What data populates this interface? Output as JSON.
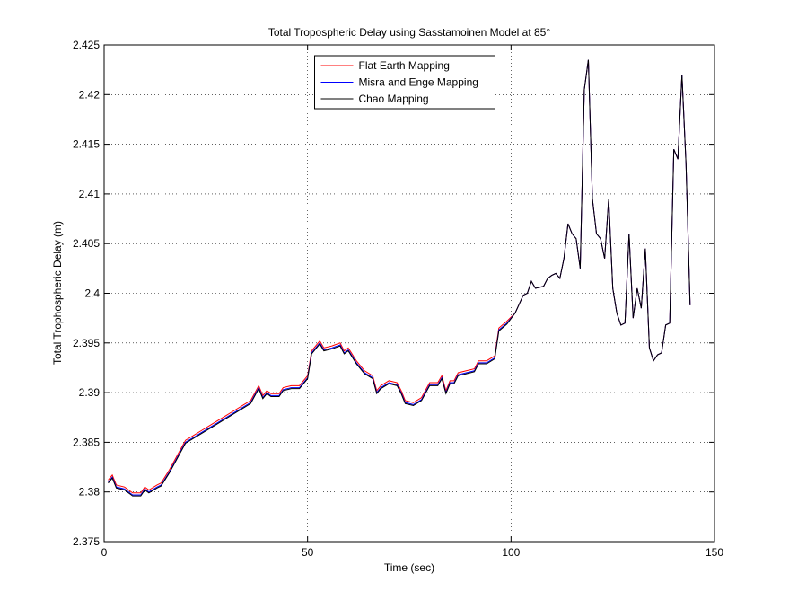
{
  "chart_data": {
    "type": "line",
    "title": "Total Tropospheric Delay using Sasstamoinen Model at 85°",
    "x_label": "Time (sec)",
    "y_label": "Total Trophospheric Delay (m)",
    "x": [
      1,
      2,
      3,
      5,
      7,
      9,
      10,
      11,
      13,
      14,
      16,
      18,
      20,
      22,
      24,
      26,
      28,
      30,
      32,
      34,
      36,
      38,
      39,
      40,
      41,
      43,
      44,
      46,
      48,
      50,
      51,
      53,
      54,
      56,
      58,
      59,
      60,
      62,
      64,
      66,
      67,
      68,
      70,
      72,
      73,
      74,
      76,
      78,
      80,
      82,
      83,
      84,
      85,
      86,
      87,
      89,
      91,
      92,
      94,
      96,
      97,
      99,
      101,
      103,
      104,
      105,
      106,
      108,
      109,
      110,
      111,
      112,
      113,
      114,
      115,
      116,
      117,
      118,
      119,
      120,
      121,
      122,
      123,
      124,
      125,
      126,
      127,
      128,
      129,
      130,
      131,
      132,
      133,
      134,
      135,
      136,
      137,
      138,
      139,
      140,
      141,
      142,
      143,
      144
    ],
    "series": [
      {
        "name": "Flat Earth Mapping",
        "color": "#ff0000",
        "values": [
          2.3812,
          2.3817,
          2.3807,
          2.3805,
          2.3799,
          2.3799,
          2.3805,
          2.3802,
          2.3807,
          2.3809,
          2.3822,
          2.3837,
          2.3852,
          2.3857,
          2.3862,
          2.3867,
          2.3872,
          2.3877,
          2.3882,
          2.3887,
          2.3892,
          2.3907,
          2.3897,
          2.3902,
          2.3899,
          2.3899,
          2.3905,
          2.3907,
          2.3907,
          2.3917,
          2.3942,
          2.3952,
          2.3945,
          2.3947,
          2.395,
          2.3942,
          2.3945,
          2.3932,
          2.3922,
          2.3917,
          2.3902,
          2.3907,
          2.3912,
          2.391,
          2.3902,
          2.3892,
          2.389,
          2.3895,
          2.391,
          2.391,
          2.3917,
          2.3902,
          2.3912,
          2.3912,
          2.392,
          2.3922,
          2.3924,
          2.3932,
          2.3932,
          2.3937,
          2.3965,
          2.3972,
          2.398,
          2.3998,
          2.4,
          2.4012,
          2.4005,
          2.4007,
          2.4015,
          2.4018,
          2.402,
          2.4015,
          2.4035,
          2.407,
          2.406,
          2.4055,
          2.4025,
          2.4205,
          2.4235,
          2.4095,
          2.406,
          2.4055,
          2.4035,
          2.4095,
          2.4005,
          2.398,
          2.3968,
          2.397,
          2.406,
          2.3975,
          2.4005,
          2.3985,
          2.4045,
          2.3945,
          2.3932,
          2.3938,
          2.394,
          2.3968,
          2.397,
          2.4145,
          2.4135,
          2.422,
          2.413,
          2.3988
        ]
      },
      {
        "name": "Misra and Enge Mapping",
        "color": "#0000ff",
        "values": [
          2.381,
          2.3815,
          2.3805,
          2.3803,
          2.3797,
          2.3797,
          2.3803,
          2.38,
          2.3805,
          2.3807,
          2.382,
          2.3835,
          2.385,
          2.3855,
          2.386,
          2.3865,
          2.387,
          2.3875,
          2.388,
          2.3885,
          2.389,
          2.3905,
          2.3895,
          2.39,
          2.3897,
          2.3897,
          2.3903,
          2.3905,
          2.3905,
          2.3915,
          2.394,
          2.395,
          2.3943,
          2.3945,
          2.3948,
          2.394,
          2.3943,
          2.393,
          2.392,
          2.3915,
          2.39,
          2.3905,
          2.391,
          2.3908,
          2.39,
          2.389,
          2.3888,
          2.3893,
          2.3908,
          2.3908,
          2.3915,
          2.39,
          2.391,
          2.391,
          2.3918,
          2.392,
          2.3922,
          2.393,
          2.393,
          2.3935,
          2.3963,
          2.397,
          2.398,
          2.3998,
          2.4,
          2.4012,
          2.4005,
          2.4007,
          2.4015,
          2.4018,
          2.402,
          2.4015,
          2.4035,
          2.407,
          2.406,
          2.4055,
          2.4025,
          2.4205,
          2.4235,
          2.4095,
          2.406,
          2.4055,
          2.4035,
          2.4095,
          2.4005,
          2.398,
          2.3968,
          2.397,
          2.406,
          2.3975,
          2.4005,
          2.3985,
          2.4045,
          2.3945,
          2.3932,
          2.3938,
          2.394,
          2.3968,
          2.397,
          2.4145,
          2.4135,
          2.422,
          2.413,
          2.3988
        ]
      },
      {
        "name": "Chao Mapping",
        "color": "#000000",
        "values": [
          2.3809,
          2.3814,
          2.3804,
          2.3802,
          2.3796,
          2.3796,
          2.3802,
          2.3799,
          2.3804,
          2.3806,
          2.3819,
          2.3834,
          2.3849,
          2.3854,
          2.3859,
          2.3864,
          2.3869,
          2.3874,
          2.3879,
          2.3884,
          2.3889,
          2.3904,
          2.3894,
          2.3899,
          2.3896,
          2.3896,
          2.3902,
          2.3904,
          2.3904,
          2.3914,
          2.3939,
          2.3949,
          2.3942,
          2.3944,
          2.3947,
          2.3939,
          2.3942,
          2.3929,
          2.3919,
          2.3914,
          2.3899,
          2.3904,
          2.3909,
          2.3907,
          2.3899,
          2.3889,
          2.3887,
          2.3892,
          2.3907,
          2.3907,
          2.3914,
          2.3899,
          2.3909,
          2.3909,
          2.3917,
          2.3919,
          2.3921,
          2.3929,
          2.3929,
          2.3934,
          2.3962,
          2.3969,
          2.398,
          2.3998,
          2.4,
          2.4012,
          2.4005,
          2.4007,
          2.4015,
          2.4018,
          2.402,
          2.4015,
          2.4035,
          2.407,
          2.406,
          2.4055,
          2.4025,
          2.4205,
          2.4235,
          2.4095,
          2.406,
          2.4055,
          2.4035,
          2.4095,
          2.4005,
          2.398,
          2.3968,
          2.397,
          2.406,
          2.3975,
          2.4005,
          2.3985,
          2.4045,
          2.3945,
          2.3932,
          2.3938,
          2.394,
          2.3968,
          2.397,
          2.4145,
          2.4135,
          2.422,
          2.413,
          2.3988
        ]
      }
    ],
    "xlim": [
      0,
      150
    ],
    "xticks": [
      0,
      50,
      100,
      150
    ],
    "ylim": [
      2.375,
      2.425
    ],
    "yticks": [
      2.375,
      2.38,
      2.385,
      2.39,
      2.395,
      2.4,
      2.405,
      2.41,
      2.415,
      2.42,
      2.425
    ],
    "grid": true,
    "legend": "north"
  }
}
